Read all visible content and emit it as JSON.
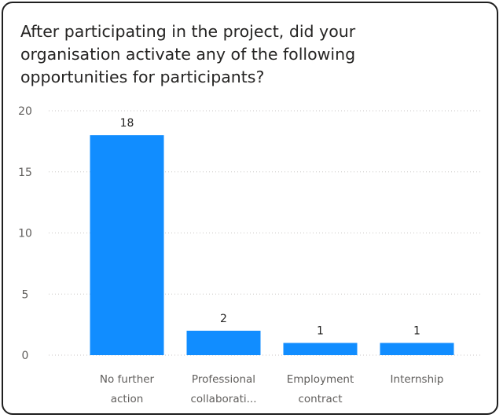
{
  "chart_data": {
    "type": "bar",
    "title": "After participating in the project, did your organisation activate any of the following opportunities for participants?",
    "categories": [
      [
        "No further",
        "action"
      ],
      [
        "Professional",
        "collaborati..."
      ],
      [
        "Employment",
        "contract"
      ],
      [
        "Internship"
      ]
    ],
    "values": [
      18,
      2,
      1,
      1
    ],
    "data_labels": [
      "18",
      "2",
      "1",
      "1"
    ],
    "yticks": [
      0,
      5,
      10,
      15,
      20
    ],
    "ylim": [
      0,
      20
    ],
    "xlabel": "",
    "ylabel": "",
    "grid": true,
    "bar_color": "#118dff"
  }
}
